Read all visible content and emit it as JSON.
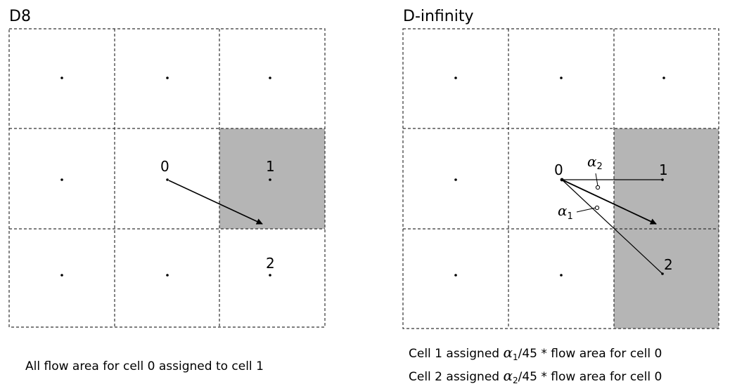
{
  "d8": {
    "title": "D8",
    "cell_labels": [
      "0",
      "1",
      "2"
    ],
    "caption": "All flow area for cell 0 assigned to cell 1"
  },
  "dinf": {
    "title": "D-infinity",
    "cell_labels": [
      "0",
      "1",
      "2"
    ],
    "alpha_symbol": "α",
    "alpha1_sub": "1",
    "alpha2_sub": "2",
    "caption1_prefix": "Cell 1 assigned ",
    "caption1_sub": "1",
    "caption1_suffix": "/45 * flow area for cell 0",
    "caption2_prefix": "Cell 2 assigned ",
    "caption2_sub": "2",
    "caption2_suffix": "/45 * flow area for cell 0"
  },
  "colors": {
    "shade": "#b5b5b5",
    "line": "#000000",
    "grid": "#333333"
  }
}
